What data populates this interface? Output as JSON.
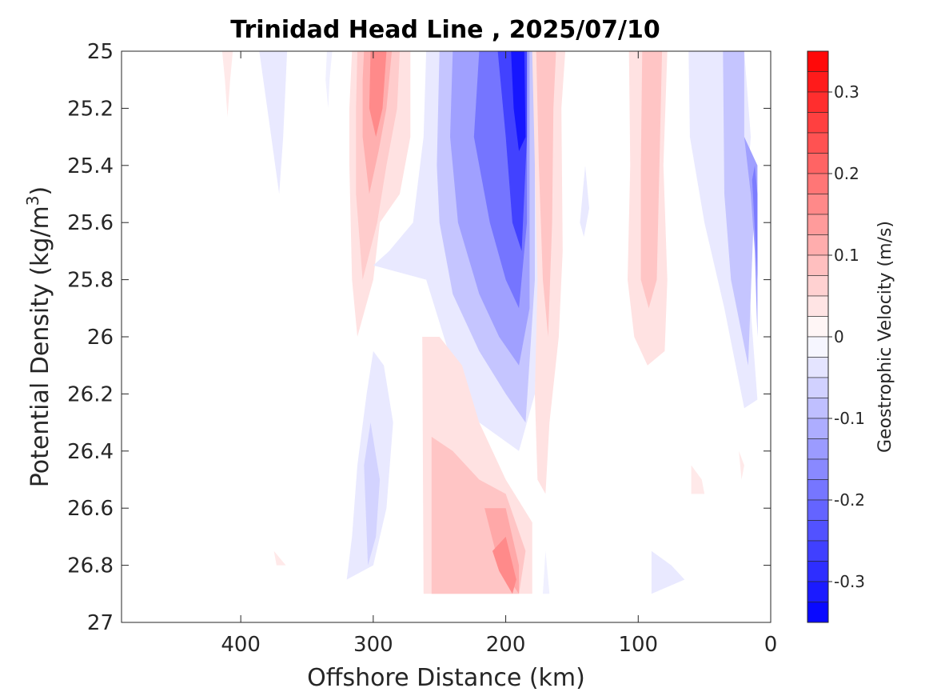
{
  "chart_data": {
    "type": "heatmap",
    "title": "Trinidad Head Line , 2025/07/10",
    "xlabel": "Offshore Distance (km)",
    "ylabel_prefix": "Potential Density (kg/m",
    "ylabel_sup": "3",
    "ylabel_suffix": ")",
    "xlim": [
      490,
      0
    ],
    "x_reversed": true,
    "ylim": [
      27,
      25
    ],
    "y_reversed": true,
    "x_ticks": [
      400,
      300,
      200,
      100,
      0
    ],
    "x_tick_labels": [
      "400",
      "300",
      "200",
      "100",
      "0"
    ],
    "y_ticks": [
      25,
      25.2,
      25.4,
      25.6,
      25.8,
      26,
      26.2,
      26.4,
      26.6,
      26.8,
      27
    ],
    "y_tick_labels": [
      "25",
      "25.2",
      "25.4",
      "25.6",
      "25.8",
      "26",
      "26.2",
      "26.4",
      "26.6",
      "26.8",
      "27"
    ],
    "grid": false,
    "colorbar": {
      "label": "Geostrophic Velocity (m/s)",
      "range": [
        -0.35,
        0.35
      ],
      "step": 0.025,
      "ticks": [
        0.3,
        0.2,
        0.1,
        0,
        -0.1,
        -0.2,
        -0.3
      ],
      "tick_labels": [
        "0.3",
        "0.2",
        "0.1",
        "0",
        "-0.1",
        "-0.2",
        "-0.3"
      ],
      "negative_color": "#0000ff",
      "positive_color": "#ff0000",
      "zero_color": "#ffffff"
    },
    "features": [
      {
        "type": "band",
        "v": 0.03,
        "d": [
          [
            406,
            25
          ],
          [
            408,
            25.1
          ],
          [
            410,
            25.23
          ],
          [
            412,
            25.1
          ],
          [
            414,
            25
          ]
        ]
      },
      {
        "type": "band",
        "v": -0.03,
        "d": [
          [
            365,
            25
          ],
          [
            366,
            25.1
          ],
          [
            368,
            25.3
          ],
          [
            371,
            25.5
          ],
          [
            377,
            25.3
          ],
          [
            383,
            25.1
          ],
          [
            386,
            25
          ]
        ]
      },
      {
        "type": "band",
        "v": -0.02,
        "d": [
          [
            335,
            25
          ],
          [
            336,
            25.1
          ],
          [
            334,
            25.2
          ],
          [
            333,
            25.1
          ],
          [
            331,
            25
          ]
        ]
      },
      {
        "type": "band",
        "v": 0.04,
        "d": [
          [
            272,
            25
          ],
          [
            272,
            25.3
          ],
          [
            280,
            25.5
          ],
          [
            295,
            25.6
          ],
          [
            300,
            25.8
          ],
          [
            306,
            25.9
          ],
          [
            312,
            26.0
          ],
          [
            316,
            25.8
          ],
          [
            318,
            25.4
          ],
          [
            318,
            25.2
          ],
          [
            316,
            25
          ]
        ]
      },
      {
        "type": "band",
        "v": 0.07,
        "d": [
          [
            280,
            25
          ],
          [
            282,
            25.2
          ],
          [
            290,
            25.4
          ],
          [
            297,
            25.6
          ],
          [
            308,
            25.8
          ],
          [
            313,
            25.5
          ],
          [
            313,
            25.2
          ],
          [
            312,
            25
          ]
        ]
      },
      {
        "type": "band",
        "v": 0.11,
        "d": [
          [
            286,
            25
          ],
          [
            290,
            25.2
          ],
          [
            296,
            25.35
          ],
          [
            303,
            25.5
          ],
          [
            308,
            25.3
          ],
          [
            308,
            25.1
          ],
          [
            307,
            25
          ]
        ]
      },
      {
        "type": "band",
        "v": 0.16,
        "d": [
          [
            290,
            25
          ],
          [
            293,
            25.2
          ],
          [
            298,
            25.3
          ],
          [
            303,
            25.2
          ],
          [
            302,
            25
          ]
        ]
      },
      {
        "type": "band",
        "v": -0.03,
        "d": [
          [
            260,
            25
          ],
          [
            262,
            25.3
          ],
          [
            270,
            25.6
          ],
          [
            288,
            25.7
          ],
          [
            300,
            25.75
          ],
          [
            260,
            25.8
          ],
          [
            240,
            26.1
          ],
          [
            220,
            26.3
          ],
          [
            190,
            26.4
          ],
          [
            178,
            26.2
          ],
          [
            174,
            25.6
          ],
          [
            173,
            25
          ],
          [
            240,
            25
          ]
        ]
      },
      {
        "type": "band",
        "v": -0.08,
        "d": [
          [
            250,
            25
          ],
          [
            252,
            25.4
          ],
          [
            250,
            25.6
          ],
          [
            240,
            25.85
          ],
          [
            220,
            26.05
          ],
          [
            200,
            26.2
          ],
          [
            185,
            26.3
          ],
          [
            178,
            25.8
          ],
          [
            178,
            25
          ],
          [
            215,
            25
          ]
        ]
      },
      {
        "type": "band",
        "v": -0.13,
        "d": [
          [
            240,
            25
          ],
          [
            242,
            25.3
          ],
          [
            236,
            25.6
          ],
          [
            220,
            25.85
          ],
          [
            205,
            26.0
          ],
          [
            190,
            26.1
          ],
          [
            182,
            25.9
          ],
          [
            182,
            25
          ],
          [
            212,
            25
          ]
        ]
      },
      {
        "type": "band",
        "v": -0.19,
        "d": [
          [
            220,
            25
          ],
          [
            224,
            25.3
          ],
          [
            212,
            25.6
          ],
          [
            200,
            25.8
          ],
          [
            190,
            25.9
          ],
          [
            184,
            25.6
          ],
          [
            184,
            25
          ]
        ]
      },
      {
        "type": "band",
        "v": -0.26,
        "d": [
          [
            206,
            25
          ],
          [
            200,
            25.3
          ],
          [
            195,
            25.6
          ],
          [
            188,
            25.7
          ],
          [
            184,
            25.3
          ],
          [
            184,
            25
          ]
        ]
      },
      {
        "type": "band",
        "v": -0.32,
        "d": [
          [
            196,
            25
          ],
          [
            194,
            25.2
          ],
          [
            190,
            25.35
          ],
          [
            185,
            25.3
          ],
          [
            186,
            25
          ]
        ]
      },
      {
        "type": "band",
        "v": 0.04,
        "d": [
          [
            180,
            25
          ],
          [
            178,
            25.4
          ],
          [
            176,
            25.8
          ],
          [
            178,
            26.2
          ],
          [
            176,
            26.5
          ],
          [
            170,
            26.55
          ],
          [
            167,
            26.3
          ],
          [
            160,
            26.0
          ],
          [
            157,
            25.7
          ],
          [
            158,
            25.2
          ],
          [
            155,
            25
          ]
        ]
      },
      {
        "type": "band",
        "v": 0.08,
        "d": [
          [
            177,
            25
          ],
          [
            175,
            25.4
          ],
          [
            172,
            25.8
          ],
          [
            168,
            26.0
          ],
          [
            165,
            25.6
          ],
          [
            164,
            25.2
          ],
          [
            162,
            25
          ]
        ]
      },
      {
        "type": "band",
        "v": 0.04,
        "d": [
          [
            107,
            25
          ],
          [
            106,
            25.4
          ],
          [
            108,
            25.8
          ],
          [
            103,
            26.0
          ],
          [
            93,
            26.1
          ],
          [
            80,
            26.05
          ],
          [
            78,
            25.8
          ],
          [
            81,
            25.4
          ],
          [
            78,
            25
          ]
        ]
      },
      {
        "type": "band",
        "v": 0.08,
        "d": [
          [
            97,
            25
          ],
          [
            98,
            25.4
          ],
          [
            98,
            25.8
          ],
          [
            92,
            25.9
          ],
          [
            86,
            25.8
          ],
          [
            84,
            25.4
          ],
          [
            82,
            25
          ]
        ]
      },
      {
        "type": "band",
        "v": -0.03,
        "d": [
          [
            62,
            25
          ],
          [
            61,
            25.3
          ],
          [
            50,
            25.6
          ],
          [
            45,
            25.7
          ],
          [
            35,
            25.9
          ],
          [
            20,
            26.25
          ],
          [
            10,
            26.22
          ],
          [
            20,
            25.6
          ],
          [
            15,
            25.3
          ],
          [
            20,
            25
          ]
        ]
      },
      {
        "type": "band",
        "v": -0.08,
        "d": [
          [
            36,
            25
          ],
          [
            35,
            25.5
          ],
          [
            30,
            25.8
          ],
          [
            17,
            26.1
          ],
          [
            13,
            25.6
          ],
          [
            12,
            25.4
          ],
          [
            20,
            25.3
          ],
          [
            20,
            25
          ]
        ]
      },
      {
        "type": "band",
        "v": -0.13,
        "d": [
          [
            20,
            25.3
          ],
          [
            15,
            25.5
          ],
          [
            12,
            25.7
          ],
          [
            10,
            26.0
          ],
          [
            10,
            25.4
          ]
        ]
      },
      {
        "type": "band",
        "v": -0.18,
        "d": [
          [
            12,
            25.4
          ],
          [
            10,
            25.5
          ],
          [
            10,
            25.8
          ],
          [
            14,
            25.45
          ]
        ]
      },
      {
        "type": "band",
        "v": -0.03,
        "d": [
          [
            140,
            25.4
          ],
          [
            137,
            25.55
          ],
          [
            141,
            25.65
          ],
          [
            144,
            25.6
          ]
        ]
      },
      {
        "type": "band",
        "v": 0.04,
        "d": [
          [
            263,
            26.0
          ],
          [
            250,
            26.0
          ],
          [
            233,
            26.1
          ],
          [
            220,
            26.3
          ],
          [
            200,
            26.5
          ],
          [
            180,
            26.65
          ],
          [
            180,
            26.9
          ],
          [
            262,
            26.9
          ]
        ]
      },
      {
        "type": "band",
        "v": 0.08,
        "d": [
          [
            256,
            26.35
          ],
          [
            240,
            26.4
          ],
          [
            220,
            26.5
          ],
          [
            200,
            26.55
          ],
          [
            185,
            26.75
          ],
          [
            190,
            26.9
          ],
          [
            256,
            26.9
          ]
        ]
      },
      {
        "type": "band",
        "v": 0.12,
        "d": [
          [
            216,
            26.6
          ],
          [
            200,
            26.6
          ],
          [
            190,
            26.8
          ],
          [
            190,
            26.9
          ],
          [
            205,
            26.8
          ]
        ]
      },
      {
        "type": "band",
        "v": 0.16,
        "d": [
          [
            210,
            26.75
          ],
          [
            200,
            26.7
          ],
          [
            192,
            26.85
          ],
          [
            195,
            26.9
          ],
          [
            205,
            26.82
          ]
        ]
      },
      {
        "type": "band",
        "v": -0.03,
        "d": [
          [
            316,
            26.7
          ],
          [
            312,
            26.45
          ],
          [
            305,
            26.2
          ],
          [
            300,
            26.05
          ],
          [
            292,
            26.1
          ],
          [
            285,
            26.3
          ],
          [
            290,
            26.6
          ],
          [
            300,
            26.8
          ],
          [
            320,
            26.85
          ]
        ]
      },
      {
        "type": "band",
        "v": -0.06,
        "d": [
          [
            307,
            26.45
          ],
          [
            302,
            26.3
          ],
          [
            295,
            26.5
          ],
          [
            298,
            26.7
          ],
          [
            304,
            26.8
          ]
        ]
      },
      {
        "type": "band",
        "v": -0.02,
        "d": [
          [
            170,
            26.75
          ],
          [
            167,
            26.9
          ],
          [
            172,
            26.9
          ]
        ]
      },
      {
        "type": "band",
        "v": 0.03,
        "d": [
          [
            375,
            26.75
          ],
          [
            373,
            26.8
          ],
          [
            366,
            26.8
          ]
        ]
      },
      {
        "type": "band",
        "v": 0.03,
        "d": [
          [
            60,
            26.45
          ],
          [
            60,
            26.55
          ],
          [
            50,
            26.55
          ],
          [
            52,
            26.5
          ]
        ]
      },
      {
        "type": "band",
        "v": 0.03,
        "d": [
          [
            24,
            26.4
          ],
          [
            22,
            26.5
          ],
          [
            20,
            26.45
          ]
        ]
      },
      {
        "type": "band",
        "v": -0.03,
        "d": [
          [
            90,
            26.75
          ],
          [
            90,
            26.9
          ],
          [
            65,
            26.85
          ],
          [
            75,
            26.8
          ]
        ]
      }
    ]
  }
}
